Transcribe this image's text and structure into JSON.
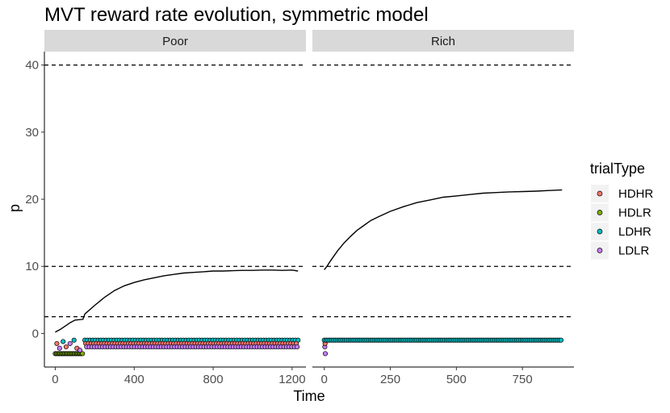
{
  "chart_data": {
    "type": "scatter",
    "title": "MVT reward rate evolution, symmetric model",
    "xlabel": "Time",
    "ylabel": "p",
    "ylim": [
      -5,
      42
    ],
    "yticks": [
      0,
      10,
      20,
      30,
      40
    ],
    "hlines": [
      40,
      10,
      2.5
    ],
    "grid": false,
    "legend": {
      "title": "trialType",
      "placement": "right",
      "entries": [
        {
          "name": "HDHR",
          "color": "#F8766D"
        },
        {
          "name": "HDLR",
          "color": "#7CAE00"
        },
        {
          "name": "LDHR",
          "color": "#00BFC4"
        },
        {
          "name": "LDLR",
          "color": "#C77CFF"
        }
      ]
    },
    "panels": [
      {
        "name": "Poor",
        "xlim": [
          -55,
          1270
        ],
        "xticks": [
          0,
          400,
          800,
          1200
        ],
        "line": [
          [
            0,
            0.2
          ],
          [
            25,
            0.6
          ],
          [
            50,
            1.1
          ],
          [
            75,
            1.6
          ],
          [
            100,
            2.0
          ],
          [
            140,
            2.1
          ],
          [
            150,
            2.9
          ],
          [
            200,
            4.2
          ],
          [
            250,
            5.4
          ],
          [
            300,
            6.4
          ],
          [
            350,
            7.1
          ],
          [
            400,
            7.6
          ],
          [
            450,
            8.0
          ],
          [
            500,
            8.3
          ],
          [
            550,
            8.6
          ],
          [
            600,
            8.8
          ],
          [
            650,
            9.0
          ],
          [
            700,
            9.1
          ],
          [
            750,
            9.2
          ],
          [
            800,
            9.3
          ],
          [
            850,
            9.3
          ],
          [
            900,
            9.35
          ],
          [
            950,
            9.4
          ],
          [
            1000,
            9.4
          ],
          [
            1050,
            9.45
          ],
          [
            1100,
            9.45
          ],
          [
            1150,
            9.4
          ],
          [
            1200,
            9.45
          ],
          [
            1230,
            9.3
          ]
        ],
        "early_points": [
          {
            "x": 8,
            "y": -1.5,
            "type": "HDHR"
          },
          {
            "x": 22,
            "y": -2.2,
            "type": "LDLR"
          },
          {
            "x": 40,
            "y": -1.2,
            "type": "LDHR"
          },
          {
            "x": 55,
            "y": -2.0,
            "type": "HDHR"
          },
          {
            "x": 75,
            "y": -1.5,
            "type": "LDLR"
          },
          {
            "x": 95,
            "y": -1.0,
            "type": "LDHR"
          },
          {
            "x": 110,
            "y": -2.2,
            "type": "HDHR"
          },
          {
            "x": 125,
            "y": -2.5,
            "type": "LDLR"
          }
        ],
        "early_hdlr": {
          "start": 0,
          "end": 140,
          "step": 6,
          "y": -3.0
        },
        "dense": {
          "start": 150,
          "end": 1230,
          "step": 13.5,
          "series": [
            {
              "type": "LDHR",
              "y": -1.0
            },
            {
              "type": "HDHR",
              "y": -1.5
            },
            {
              "type": "LDLR",
              "y": -2.0
            }
          ]
        }
      },
      {
        "name": "Rich",
        "xlim": [
          -45,
          945
        ],
        "xticks": [
          0,
          250,
          500,
          750
        ],
        "line": [
          [
            0,
            9.5
          ],
          [
            10,
            10.0
          ],
          [
            25,
            10.9
          ],
          [
            50,
            12.3
          ],
          [
            75,
            13.5
          ],
          [
            100,
            14.5
          ],
          [
            125,
            15.4
          ],
          [
            150,
            16.1
          ],
          [
            175,
            16.8
          ],
          [
            200,
            17.3
          ],
          [
            250,
            18.2
          ],
          [
            300,
            18.9
          ],
          [
            350,
            19.5
          ],
          [
            400,
            19.9
          ],
          [
            450,
            20.3
          ],
          [
            500,
            20.5
          ],
          [
            550,
            20.7
          ],
          [
            600,
            20.9
          ],
          [
            650,
            21.0
          ],
          [
            700,
            21.1
          ],
          [
            750,
            21.15
          ],
          [
            800,
            21.2
          ],
          [
            850,
            21.3
          ],
          [
            900,
            21.4
          ]
        ],
        "early_points": [
          {
            "x": 2,
            "y": -2.0,
            "type": "LDLR"
          },
          {
            "x": 4,
            "y": -3.0,
            "type": "LDLR"
          },
          {
            "x": 3,
            "y": -1.5,
            "type": "HDHR"
          }
        ],
        "dense": {
          "start": 0,
          "end": 900,
          "step": 7,
          "series": [
            {
              "type": "LDHR",
              "y": -1.0
            }
          ]
        }
      }
    ]
  }
}
